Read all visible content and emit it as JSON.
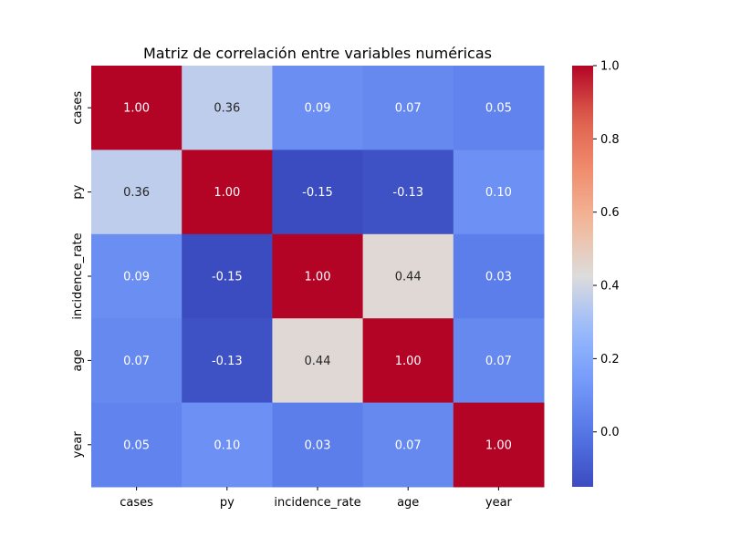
{
  "chart_data": {
    "type": "heatmap",
    "title": "Matriz de correlación entre variables numéricas",
    "xlabel": "",
    "ylabel": "",
    "x_categories": [
      "cases",
      "py",
      "incidence_rate",
      "age",
      "year"
    ],
    "y_categories": [
      "cases",
      "py",
      "incidence_rate",
      "age",
      "year"
    ],
    "values": [
      [
        1.0,
        0.36,
        0.09,
        0.07,
        0.05
      ],
      [
        0.36,
        1.0,
        -0.15,
        -0.13,
        0.1
      ],
      [
        0.09,
        -0.15,
        1.0,
        0.44,
        0.03
      ],
      [
        0.07,
        -0.13,
        0.44,
        1.0,
        0.07
      ],
      [
        0.05,
        0.1,
        0.03,
        0.07,
        1.0
      ]
    ],
    "cell_labels": [
      [
        "1.00",
        "0.36",
        "0.09",
        "0.07",
        "0.05"
      ],
      [
        "0.36",
        "1.00",
        "-0.15",
        "-0.13",
        "0.10"
      ],
      [
        "0.09",
        "-0.15",
        "1.00",
        "0.44",
        "0.03"
      ],
      [
        "0.07",
        "-0.13",
        "0.44",
        "1.00",
        "0.07"
      ],
      [
        "0.05",
        "0.10",
        "0.03",
        "0.07",
        "1.00"
      ]
    ],
    "colormap": "coolwarm",
    "vmin": -0.15,
    "vmax": 1.0,
    "colorbar": {
      "ticks": [
        0.0,
        0.2,
        0.4,
        0.6,
        0.8,
        1.0
      ],
      "tick_labels": [
        "0.0",
        "0.2",
        "0.4",
        "0.6",
        "0.8",
        "1.0"
      ],
      "placement": "right"
    },
    "grid": false
  }
}
